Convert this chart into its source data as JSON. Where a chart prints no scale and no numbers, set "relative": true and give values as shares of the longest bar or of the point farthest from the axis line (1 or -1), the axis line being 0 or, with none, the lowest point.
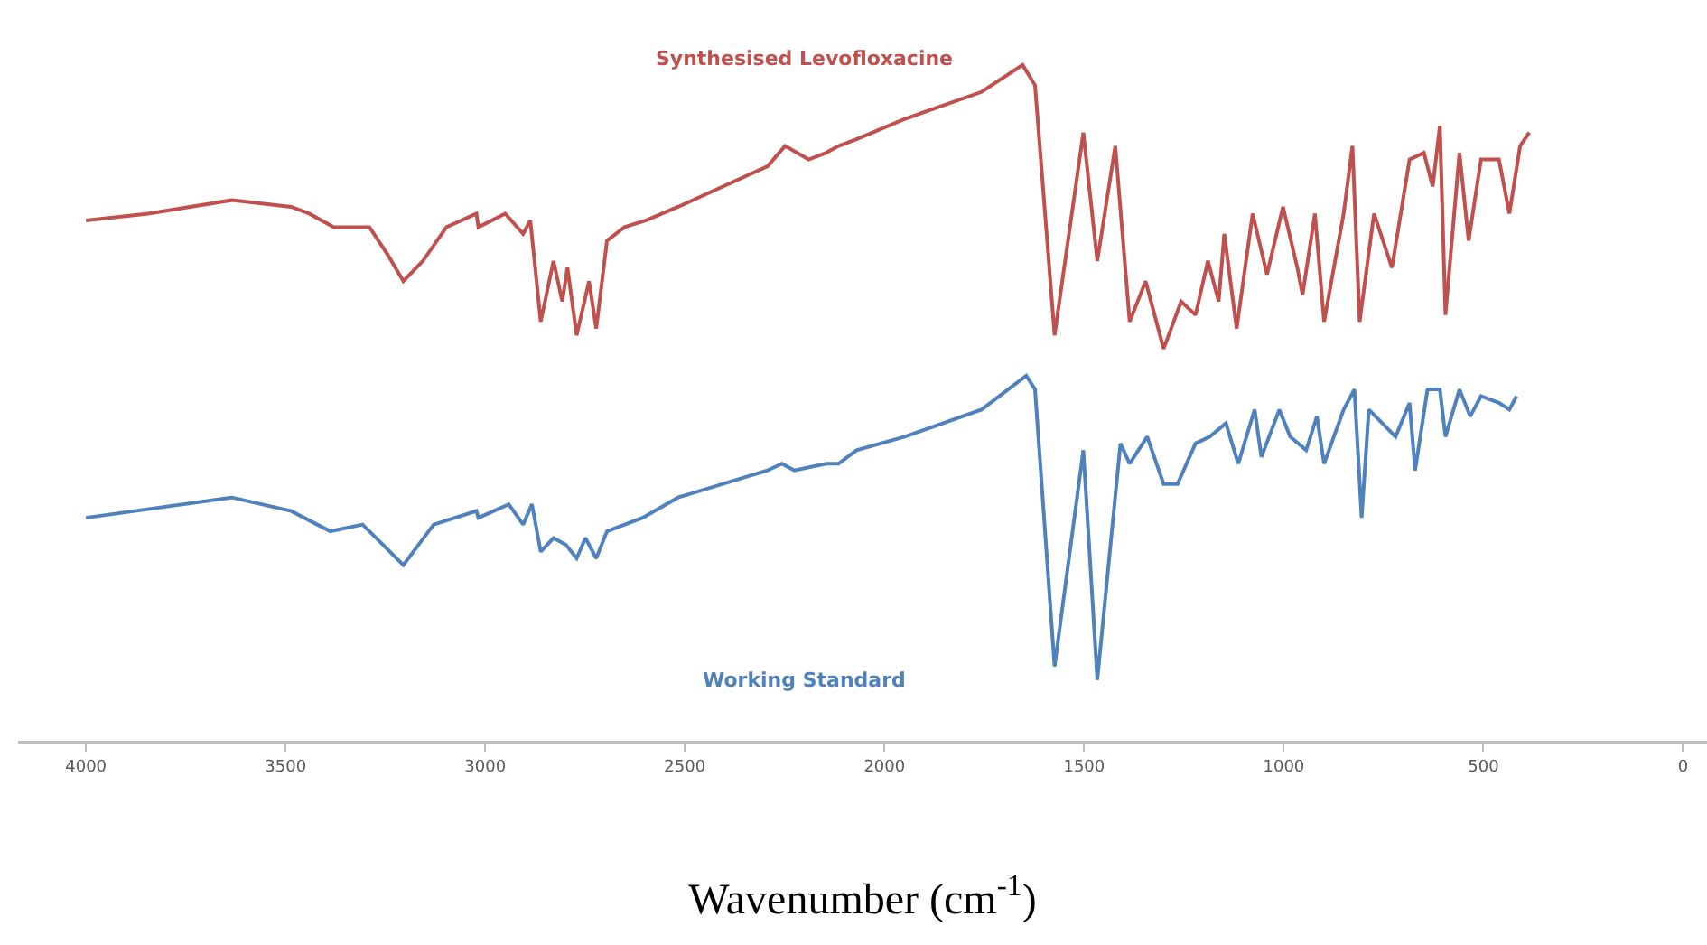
{
  "chart_data": {
    "type": "line",
    "relative": true,
    "xlabel": "Wavenumber (cm$^{-1}$)",
    "xlim": [
      4170,
      -60
    ],
    "xticks": [
      4000,
      3500,
      3000,
      2500,
      2000,
      1500,
      1000,
      500,
      0
    ],
    "legend": false,
    "marker": "none",
    "line_style": "solid",
    "series": [
      {
        "name": "Synthesised Levofloxacine",
        "color": "#c0504d",
        "x": [
          4000,
          3844,
          3634,
          3486,
          3441,
          3379,
          3290,
          3245,
          3205,
          3156,
          3097,
          3022,
          3017,
          2950,
          2905,
          2887,
          2861,
          2829,
          2807,
          2794,
          2771,
          2740,
          2722,
          2695,
          2651,
          2597,
          2517,
          2293,
          2249,
          2190,
          2146,
          2115,
          2070,
          1949,
          1757,
          1654,
          1623,
          1574,
          1502,
          1467,
          1422,
          1386,
          1346,
          1301,
          1257,
          1221,
          1190,
          1163,
          1149,
          1118,
          1078,
          1042,
          1002,
          966,
          953,
          922,
          899,
          850,
          828,
          810,
          774,
          729,
          685,
          649,
          627,
          609,
          595,
          560,
          537,
          506,
          461,
          435,
          408,
          385
        ],
        "values": [
          0.77,
          0.78,
          0.8,
          0.79,
          0.78,
          0.76,
          0.76,
          0.72,
          0.68,
          0.71,
          0.76,
          0.78,
          0.76,
          0.78,
          0.75,
          0.77,
          0.62,
          0.71,
          0.65,
          0.7,
          0.6,
          0.68,
          0.61,
          0.74,
          0.76,
          0.77,
          0.79,
          0.85,
          0.88,
          0.86,
          0.87,
          0.88,
          0.89,
          0.92,
          0.96,
          1.0,
          0.97,
          0.6,
          0.9,
          0.71,
          0.88,
          0.62,
          0.68,
          0.58,
          0.65,
          0.63,
          0.71,
          0.65,
          0.75,
          0.61,
          0.78,
          0.69,
          0.79,
          0.7,
          0.66,
          0.78,
          0.62,
          0.78,
          0.88,
          0.62,
          0.78,
          0.7,
          0.86,
          0.87,
          0.82,
          0.91,
          0.63,
          0.87,
          0.74,
          0.86,
          0.86,
          0.78,
          0.88,
          0.9
        ]
      },
      {
        "name": "Working Standard",
        "color": "#4f81bd",
        "x": [
          4000,
          3634,
          3486,
          3388,
          3307,
          3205,
          3129,
          3022,
          3017,
          2941,
          2905,
          2883,
          2861,
          2829,
          2798,
          2771,
          2749,
          2722,
          2695,
          2606,
          2517,
          2293,
          2257,
          2226,
          2146,
          2115,
          2070,
          1949,
          1757,
          1645,
          1623,
          1574,
          1502,
          1467,
          1409,
          1386,
          1342,
          1301,
          1266,
          1221,
          1185,
          1145,
          1114,
          1073,
          1056,
          1011,
          984,
          944,
          917,
          899,
          850,
          823,
          805,
          787,
          720,
          685,
          671,
          640,
          609,
          595,
          560,
          533,
          506,
          461,
          435,
          417
        ],
        "values": [
          0.33,
          0.36,
          0.34,
          0.31,
          0.32,
          0.26,
          0.32,
          0.34,
          0.33,
          0.35,
          0.32,
          0.35,
          0.28,
          0.3,
          0.29,
          0.27,
          0.3,
          0.27,
          0.31,
          0.33,
          0.36,
          0.4,
          0.41,
          0.4,
          0.41,
          0.41,
          0.43,
          0.45,
          0.49,
          0.54,
          0.52,
          0.11,
          0.43,
          0.09,
          0.44,
          0.41,
          0.45,
          0.38,
          0.38,
          0.44,
          0.45,
          0.47,
          0.41,
          0.49,
          0.42,
          0.49,
          0.45,
          0.43,
          0.48,
          0.41,
          0.49,
          0.52,
          0.33,
          0.49,
          0.45,
          0.5,
          0.4,
          0.52,
          0.52,
          0.45,
          0.52,
          0.48,
          0.51,
          0.5,
          0.49,
          0.51
        ]
      }
    ]
  }
}
